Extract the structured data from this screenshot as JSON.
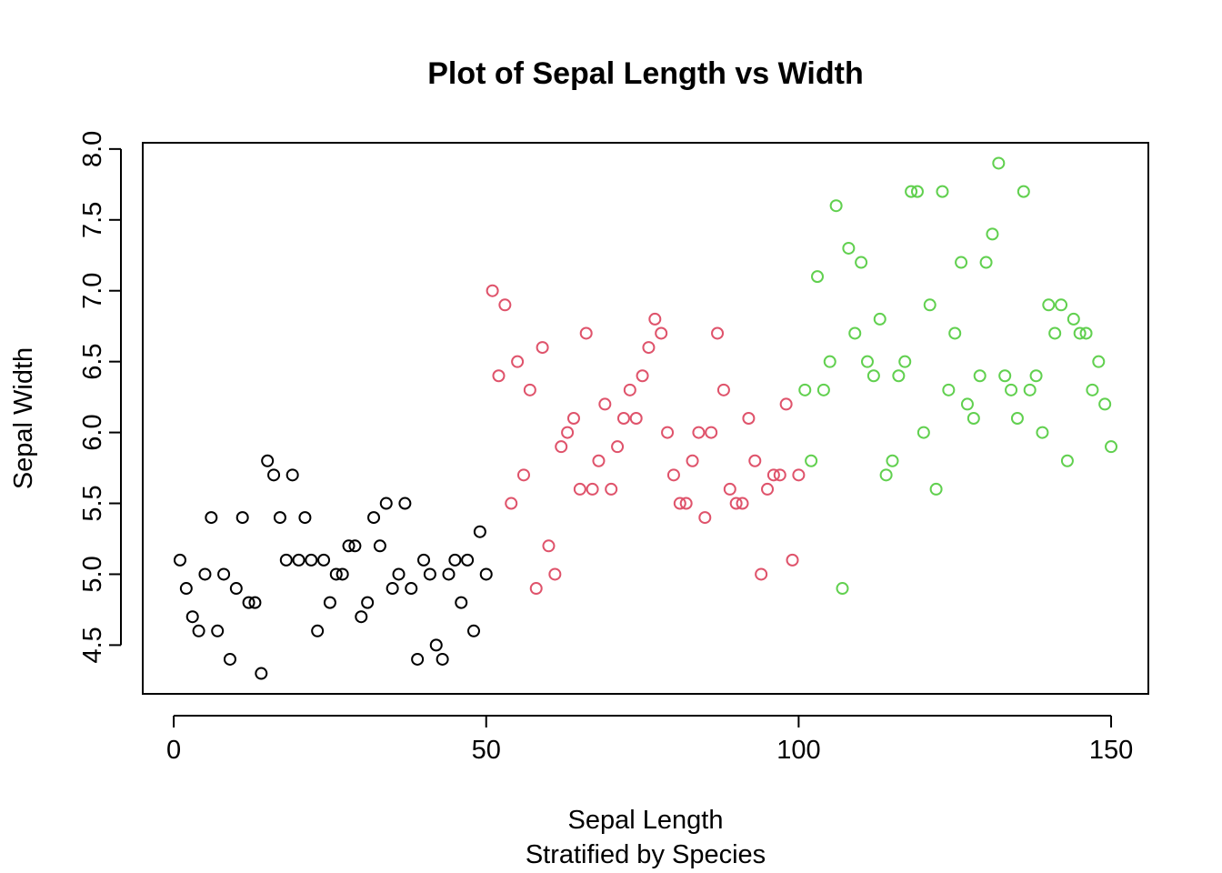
{
  "chart_data": {
    "type": "scatter",
    "title": "Plot of Sepal Length vs Width",
    "xlabel": "Sepal Length",
    "subtitle": "Stratified by Species",
    "ylabel": "Sepal Width",
    "xlim": [
      -4.96,
      155.96
    ],
    "ylim": [
      4.156,
      8.044
    ],
    "x_ticks": [
      0,
      50,
      100,
      150
    ],
    "x_tick_labels": [
      "0",
      "50",
      "100",
      "150"
    ],
    "y_ticks": [
      4.5,
      5.0,
      5.5,
      6.0,
      6.5,
      7.0,
      7.5,
      8.0
    ],
    "y_tick_labels": [
      "4.5",
      "5.0",
      "5.5",
      "6.0",
      "6.5",
      "7.0",
      "7.5",
      "8.0"
    ],
    "grid": false,
    "legend": "none",
    "series": [
      {
        "color": "#000000",
        "x": [
          1,
          2,
          3,
          4,
          5,
          6,
          7,
          8,
          9,
          10,
          11,
          12,
          13,
          14,
          15,
          16,
          17,
          18,
          19,
          20,
          21,
          22,
          23,
          24,
          25,
          26,
          27,
          28,
          29,
          30,
          31,
          32,
          33,
          34,
          35,
          36,
          37,
          38,
          39,
          40,
          41,
          42,
          43,
          44,
          45,
          46,
          47,
          48,
          49,
          50
        ],
        "y": [
          5.1,
          4.9,
          4.7,
          4.6,
          5.0,
          5.4,
          4.6,
          5.0,
          4.4,
          4.9,
          5.4,
          4.8,
          4.8,
          4.3,
          5.8,
          5.7,
          5.4,
          5.1,
          5.7,
          5.1,
          5.4,
          5.1,
          4.6,
          5.1,
          4.8,
          5.0,
          5.0,
          5.2,
          5.2,
          4.7,
          4.8,
          5.4,
          5.2,
          5.5,
          4.9,
          5.0,
          5.5,
          4.9,
          4.4,
          5.1,
          5.0,
          4.5,
          4.4,
          5.0,
          5.1,
          4.8,
          5.1,
          4.6,
          5.3,
          5.0
        ]
      },
      {
        "color": "#DF536B",
        "x": [
          51,
          52,
          53,
          54,
          55,
          56,
          57,
          58,
          59,
          60,
          61,
          62,
          63,
          64,
          65,
          66,
          67,
          68,
          69,
          70,
          71,
          72,
          73,
          74,
          75,
          76,
          77,
          78,
          79,
          80,
          81,
          82,
          83,
          84,
          85,
          86,
          87,
          88,
          89,
          90,
          91,
          92,
          93,
          94,
          95,
          96,
          97,
          98,
          99,
          100
        ],
        "y": [
          7.0,
          6.4,
          6.9,
          5.5,
          6.5,
          5.7,
          6.3,
          4.9,
          6.6,
          5.2,
          5.0,
          5.9,
          6.0,
          6.1,
          5.6,
          6.7,
          5.6,
          5.8,
          6.2,
          5.6,
          5.9,
          6.1,
          6.3,
          6.1,
          6.4,
          6.6,
          6.8,
          6.7,
          6.0,
          5.7,
          5.5,
          5.5,
          5.8,
          6.0,
          5.4,
          6.0,
          6.7,
          6.3,
          5.6,
          5.5,
          5.5,
          6.1,
          5.8,
          5.0,
          5.6,
          5.7,
          5.7,
          6.2,
          5.1,
          5.7
        ]
      },
      {
        "color": "#61D04F",
        "x": [
          101,
          102,
          103,
          104,
          105,
          106,
          107,
          108,
          109,
          110,
          111,
          112,
          113,
          114,
          115,
          116,
          117,
          118,
          119,
          120,
          121,
          122,
          123,
          124,
          125,
          126,
          127,
          128,
          129,
          130,
          131,
          132,
          133,
          134,
          135,
          136,
          137,
          138,
          139,
          140,
          141,
          142,
          143,
          144,
          145,
          146,
          147,
          148,
          149,
          150
        ],
        "y": [
          6.3,
          5.8,
          7.1,
          6.3,
          6.5,
          7.6,
          4.9,
          7.3,
          6.7,
          7.2,
          6.5,
          6.4,
          6.8,
          5.7,
          5.8,
          6.4,
          6.5,
          7.7,
          7.7,
          6.0,
          6.9,
          5.6,
          7.7,
          6.3,
          6.7,
          7.2,
          6.2,
          6.1,
          6.4,
          7.2,
          7.4,
          7.9,
          6.4,
          6.3,
          6.1,
          7.7,
          6.3,
          6.4,
          6.0,
          6.9,
          6.7,
          6.9,
          5.8,
          6.8,
          6.7,
          6.7,
          6.3,
          6.5,
          6.2,
          5.9
        ]
      }
    ]
  }
}
